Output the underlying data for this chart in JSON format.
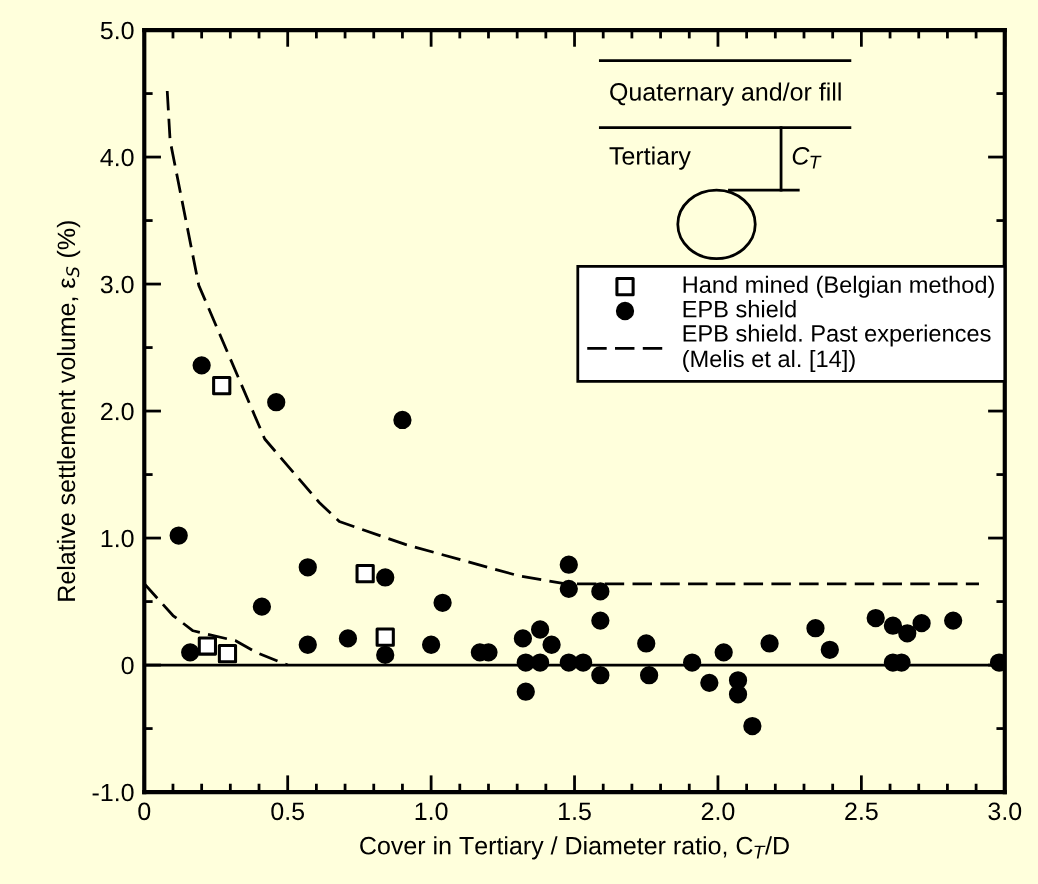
{
  "chart_data": {
    "type": "scatter",
    "xlabel": "Cover in Tertiary / Diameter ratio, C$_{T}$/D",
    "ylabel": "Relative settlement volume, ε$_{S}$ (%)",
    "xlim": [
      0,
      3.0
    ],
    "ylim": [
      -1.0,
      5.0
    ],
    "xticks": [
      0,
      {
        "value": 0.1,
        "label": null
      },
      {
        "value": 0.2,
        "label": null
      },
      {
        "value": 0.3,
        "label": null
      },
      {
        "value": 0.4,
        "label": null
      },
      0.5,
      {
        "value": 0.6,
        "label": null
      },
      {
        "value": 0.7,
        "label": null
      },
      {
        "value": 0.8,
        "label": null
      },
      {
        "value": 0.9,
        "label": null
      },
      {
        "value": 1.0,
        "label": "1.0"
      },
      {
        "value": 1.1,
        "label": null
      },
      {
        "value": 1.2,
        "label": null
      },
      {
        "value": 1.3,
        "label": null
      },
      {
        "value": 1.4,
        "label": null
      },
      1.5,
      {
        "value": 1.6,
        "label": null
      },
      {
        "value": 1.7,
        "label": null
      },
      {
        "value": 1.8,
        "label": null
      },
      {
        "value": 1.9,
        "label": null
      },
      {
        "value": 2.0,
        "label": "2.0"
      },
      {
        "value": 2.1,
        "label": null
      },
      {
        "value": 2.2,
        "label": null
      },
      {
        "value": 2.3,
        "label": null
      },
      {
        "value": 2.4,
        "label": null
      },
      2.5,
      {
        "value": 2.6,
        "label": null
      },
      {
        "value": 2.7,
        "label": null
      },
      {
        "value": 2.8,
        "label": null
      },
      {
        "value": 2.9,
        "label": null
      },
      {
        "value": 3.0,
        "label": "3.0"
      }
    ],
    "yticks": [
      {
        "value": -1.0,
        "label": "-1.0"
      },
      {
        "value": -0.5,
        "label": null
      },
      0,
      {
        "value": 0.5,
        "label": null
      },
      {
        "value": 1.0,
        "label": "1.0"
      },
      {
        "value": 1.5,
        "label": null
      },
      {
        "value": 2.0,
        "label": "2.0"
      },
      {
        "value": 2.5,
        "label": null
      },
      {
        "value": 3.0,
        "label": "3.0"
      },
      {
        "value": 3.5,
        "label": null
      },
      {
        "value": 4.0,
        "label": "4.0"
      },
      {
        "value": 4.5,
        "label": null
      },
      {
        "value": 5.0,
        "label": "5.0"
      }
    ],
    "grid": false,
    "legend": "right",
    "ref_lines": [
      {
        "axis": "y",
        "value": 0,
        "color": "#000000",
        "line_style": "solid"
      }
    ],
    "annotations": [
      "Quaternary and/or fill",
      "Tertiary",
      "C$_{T}$"
    ],
    "series": [
      {
        "name": "Hand mined (Belgian method)",
        "marker": "square",
        "color": "#000000",
        "x": [
          0.27,
          0.77,
          0.84,
          0.22,
          0.29
        ],
        "values": [
          2.2,
          0.72,
          0.22,
          0.15,
          0.09
        ]
      },
      {
        "name": "EPB shield",
        "marker": "circle",
        "color": "#000000",
        "x": [
          0.12,
          0.16,
          0.2,
          0.41,
          0.46,
          0.57,
          0.57,
          0.71,
          0.84,
          0.84,
          0.9,
          1.0,
          1.04,
          1.17,
          1.2,
          1.32,
          1.33,
          1.33,
          1.38,
          1.38,
          1.42,
          1.48,
          1.48,
          1.48,
          1.53,
          1.59,
          1.59,
          1.59,
          1.75,
          1.76,
          1.91,
          1.97,
          2.02,
          2.07,
          2.07,
          2.12,
          2.18,
          2.34,
          2.39,
          2.55,
          2.61,
          2.61,
          2.64,
          2.66,
          2.71,
          2.82,
          2.98
        ],
        "values": [
          1.02,
          0.1,
          2.36,
          0.46,
          2.07,
          0.77,
          0.16,
          0.21,
          0.69,
          0.08,
          1.93,
          0.16,
          0.49,
          0.1,
          0.1,
          0.21,
          0.02,
          -0.21,
          0.28,
          0.02,
          0.16,
          0.79,
          0.6,
          0.02,
          0.02,
          0.58,
          0.35,
          -0.08,
          0.17,
          -0.08,
          0.02,
          -0.14,
          0.1,
          -0.12,
          -0.23,
          -0.48,
          0.17,
          0.29,
          0.12,
          0.37,
          0.31,
          0.02,
          0.02,
          0.25,
          0.33,
          0.35,
          0.02
        ]
      },
      {
        "name": "EPB shield. Past experiences\n(Melis et al. [14])",
        "type": "line",
        "marker": "none",
        "line_style": "dashed",
        "color": "#000000",
        "x": [
          0.08,
          0.09,
          0.19,
          0.42,
          0.61,
          0.68,
          0.91,
          1.31,
          1.47,
          2.91
        ],
        "values": [
          4.52,
          4.13,
          2.99,
          1.78,
          1.28,
          1.13,
          0.95,
          0.7,
          0.64,
          0.64
        ]
      },
      {
        "type": "line",
        "marker": "none",
        "line_style": "dashed",
        "color": "#000000",
        "x": [
          0,
          0.1,
          0.17,
          0.32,
          0.39,
          0.5
        ],
        "values": [
          0.64,
          0.39,
          0.27,
          0.19,
          0.1,
          0
        ]
      }
    ]
  }
}
